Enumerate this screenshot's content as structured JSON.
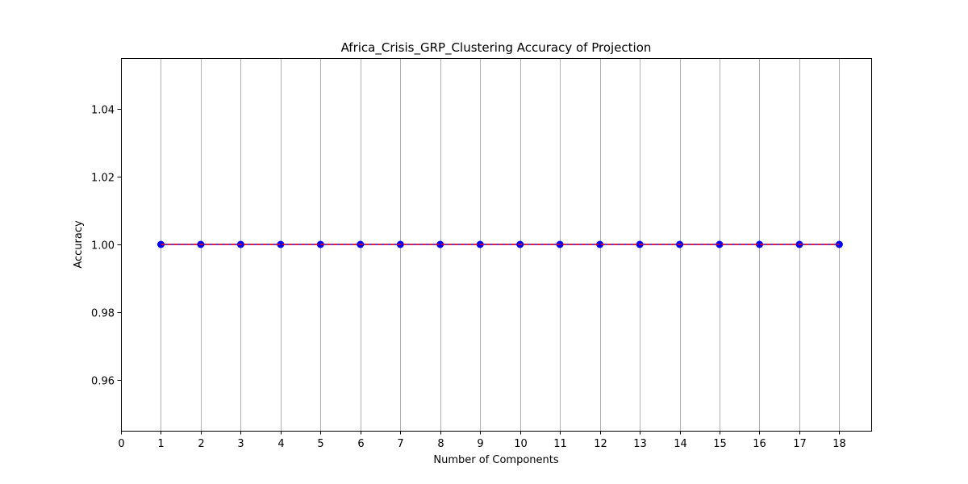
{
  "chart_data": {
    "type": "line",
    "title": "Africa_Crisis_GRP_Clustering Accuracy of Projection",
    "xlabel": "Number of Components",
    "ylabel": "Accuracy",
    "xlim": [
      0,
      18.8
    ],
    "ylim": [
      0.945,
      1.055
    ],
    "x_ticks": [
      0,
      1,
      2,
      3,
      4,
      5,
      6,
      7,
      8,
      9,
      10,
      11,
      12,
      13,
      14,
      15,
      16,
      17,
      18
    ],
    "x_tick_labels": [
      "0",
      "1",
      "2",
      "3",
      "4",
      "5",
      "6",
      "7",
      "8",
      "9",
      "10",
      "11",
      "12",
      "13",
      "14",
      "15",
      "16",
      "17",
      "18"
    ],
    "y_ticks": [
      0.96,
      0.98,
      1.0,
      1.02,
      1.04
    ],
    "y_tick_labels": [
      "0.96",
      "0.98",
      "1.00",
      "1.02",
      "1.04"
    ],
    "grid": "x-only",
    "series": [
      {
        "x": [
          1,
          2,
          3,
          4,
          5,
          6,
          7,
          8,
          9,
          10,
          11,
          12,
          13,
          14,
          15,
          16,
          17,
          18
        ],
        "values": [
          1,
          1,
          1,
          1,
          1,
          1,
          1,
          1,
          1,
          1,
          1,
          1,
          1,
          1,
          1,
          1,
          1,
          1
        ],
        "color": "#0000ff",
        "marker": "circle",
        "line_style": "solid"
      },
      {
        "x": [
          1,
          2,
          3,
          4,
          5,
          6,
          7,
          8,
          9,
          10,
          11,
          12,
          13,
          14,
          15,
          16,
          17,
          18
        ],
        "values": [
          1,
          1,
          1,
          1,
          1,
          1,
          1,
          1,
          1,
          1,
          1,
          1,
          1,
          1,
          1,
          1,
          1,
          1
        ],
        "color": "#ff0000",
        "marker": "none",
        "line_style": "dashed"
      }
    ],
    "colors": {
      "grid": "#b0b0b0",
      "axes": "#000000"
    }
  }
}
